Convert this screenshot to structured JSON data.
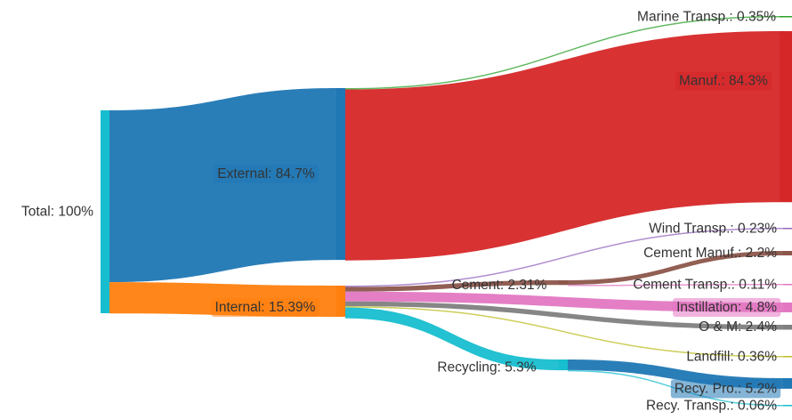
{
  "chart_data": {
    "type": "sankey",
    "nodes": [
      {
        "id": "total",
        "label": "Total: 100%",
        "value": 100,
        "color": "#17becf"
      },
      {
        "id": "external",
        "label": "External: 84.7%",
        "value": 84.7,
        "color": "#1f77b4"
      },
      {
        "id": "internal",
        "label": "Internal: 15.39%",
        "value": 15.39,
        "color": "#ff7f0e"
      },
      {
        "id": "marine",
        "label": "Marine Transp.: 0.35%",
        "value": 0.35,
        "color": "#2ca02c"
      },
      {
        "id": "manuf",
        "label": "Manuf.: 84.3%",
        "value": 84.3,
        "color": "#d62728"
      },
      {
        "id": "cement",
        "label": "Cement: 2.31%",
        "value": 2.31,
        "color": "#8c564b"
      },
      {
        "id": "recycling",
        "label": "Recycling: 5.3%",
        "value": 5.3,
        "color": "#17becf"
      },
      {
        "id": "wind",
        "label": "Wind Transp.: 0.23%",
        "value": 0.23,
        "color": "#9467bd"
      },
      {
        "id": "cement_manuf",
        "label": "Cement Manuf.: 2.2%",
        "value": 2.2,
        "color": "#8c564b"
      },
      {
        "id": "cement_transp",
        "label": "Cement Transp.: 0.11%",
        "value": 0.11,
        "color": "#e377c2"
      },
      {
        "id": "instillation",
        "label": "Instillation: 4.8%",
        "value": 4.8,
        "color": "#e377c2"
      },
      {
        "id": "om",
        "label": "O & M: 2.4%",
        "value": 2.4,
        "color": "#7f7f7f"
      },
      {
        "id": "landfill",
        "label": "Landfill: 0.36%",
        "value": 0.36,
        "color": "#bcbd22"
      },
      {
        "id": "recy_pro",
        "label": "Recy. Pro.: 5.2%",
        "value": 5.2,
        "color": "#1f77b4"
      },
      {
        "id": "recy_transp",
        "label": "Recy. Transp.: 0.06%",
        "value": 0.06,
        "color": "#17becf"
      }
    ],
    "links": [
      {
        "source": "total",
        "target": "external",
        "value": 84.7
      },
      {
        "source": "total",
        "target": "internal",
        "value": 15.39
      },
      {
        "source": "external",
        "target": "marine",
        "value": 0.35
      },
      {
        "source": "external",
        "target": "manuf",
        "value": 84.3
      },
      {
        "source": "internal",
        "target": "wind",
        "value": 0.23
      },
      {
        "source": "internal",
        "target": "cement",
        "value": 2.31
      },
      {
        "source": "internal",
        "target": "instillation",
        "value": 4.8
      },
      {
        "source": "internal",
        "target": "om",
        "value": 2.4
      },
      {
        "source": "internal",
        "target": "landfill",
        "value": 0.36
      },
      {
        "source": "internal",
        "target": "recycling",
        "value": 5.3
      },
      {
        "source": "cement",
        "target": "cement_manuf",
        "value": 2.2
      },
      {
        "source": "cement",
        "target": "cement_transp",
        "value": 0.11
      },
      {
        "source": "recycling",
        "target": "recy_pro",
        "value": 5.2
      },
      {
        "source": "recycling",
        "target": "recy_transp",
        "value": 0.06
      }
    ]
  }
}
